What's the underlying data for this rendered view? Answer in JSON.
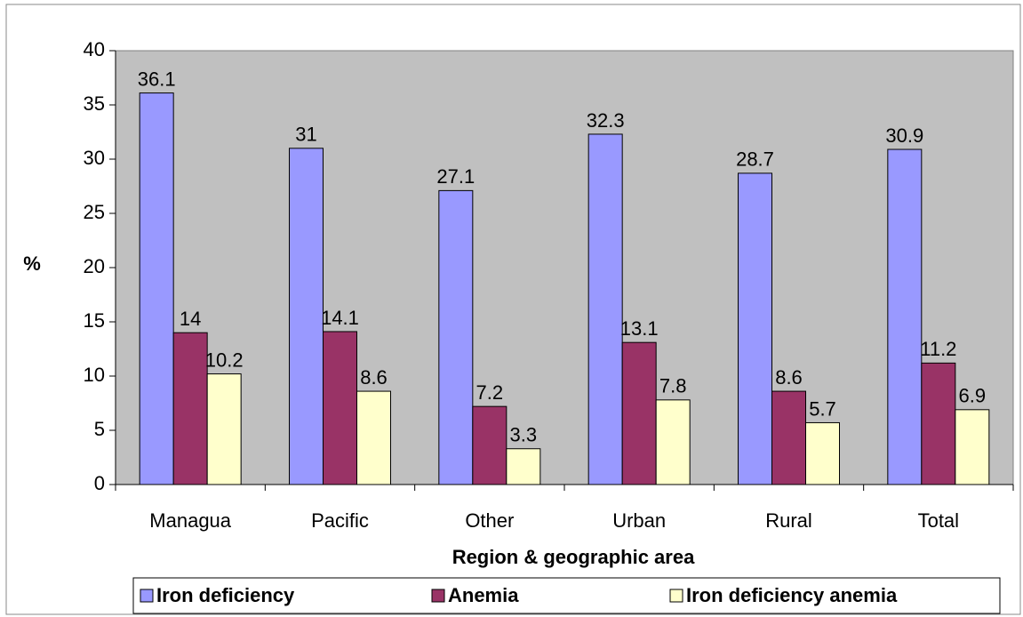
{
  "chart_data": {
    "type": "bar",
    "categories": [
      "Managua",
      "Pacific",
      "Other",
      "Urban",
      "Rural",
      "Total"
    ],
    "series": [
      {
        "name": "Iron deficiency",
        "color": "#9999ff",
        "values": [
          36.1,
          31,
          27.1,
          32.3,
          28.7,
          30.9
        ]
      },
      {
        "name": "Anemia",
        "color": "#993366",
        "values": [
          14,
          14.1,
          7.2,
          13.1,
          8.6,
          11.2
        ]
      },
      {
        "name": "Iron deficiency anemia",
        "color": "#ffffcc",
        "values": [
          10.2,
          8.6,
          3.3,
          7.8,
          5.7,
          6.9
        ]
      }
    ],
    "y_label": "%",
    "x_label": "Region & geographic area",
    "ylim": [
      0,
      40
    ],
    "yticks": [
      0,
      5,
      10,
      15,
      20,
      25,
      30,
      35,
      40
    ],
    "legend": "bottom"
  }
}
